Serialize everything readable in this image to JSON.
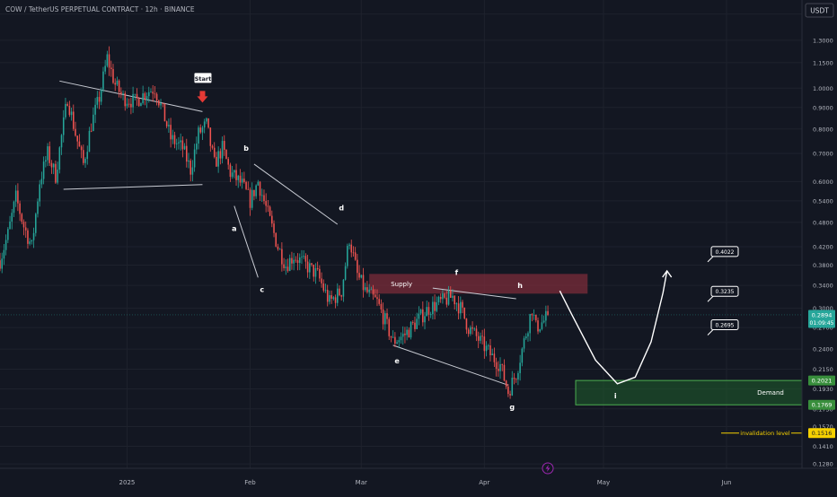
{
  "header": {
    "title": "COW / TetherUS PERPETUAL CONTRACT · 12h · BINANCE"
  },
  "currency_label": "USDT",
  "colors": {
    "background": "#131722",
    "up": "#26a69a",
    "down": "#ef5350",
    "grid": "#1e222d",
    "text": "#b2b5be",
    "supply": "#7b2c3a",
    "demand": "#1f5e2c",
    "demand_border": "#4caf50",
    "invalidation": "#f5d000",
    "arrow": "#e53935",
    "last_price": "#26a69a"
  },
  "chart_data": {
    "type": "candlestick",
    "y_scale": "log",
    "ylim": [
      0.125,
      1.62
    ],
    "y_ticks": [
      "1.5000",
      "1.3000",
      "1.1500",
      "1.0000",
      "0.9000",
      "0.8000",
      "0.7000",
      "0.6000",
      "0.5400",
      "0.4800",
      "0.4200",
      "0.3800",
      "0.3400",
      "0.3000",
      "0.2700",
      "0.2400",
      "0.2150",
      "0.1930",
      "0.1730",
      "0.1570",
      "0.1410",
      "0.1280"
    ],
    "x_ticks": [
      {
        "label": "2025",
        "date": "2025-01-01"
      },
      {
        "label": "Feb",
        "date": "2025-02-01"
      },
      {
        "label": "Mar",
        "date": "2025-03-01"
      },
      {
        "label": "Apr",
        "date": "2025-04-01"
      },
      {
        "label": "May",
        "date": "2025-05-01"
      },
      {
        "label": "Jun",
        "date": "2025-06-01"
      }
    ],
    "xlim": [
      "2024-11-30",
      "2025-06-20"
    ],
    "price_anchors": [
      {
        "date": "2024-11-30",
        "price": 0.39
      },
      {
        "date": "2024-12-02",
        "price": 0.45
      },
      {
        "date": "2024-12-04",
        "price": 0.55
      },
      {
        "date": "2024-12-06",
        "price": 0.47
      },
      {
        "date": "2024-12-08",
        "price": 0.42
      },
      {
        "date": "2024-12-10",
        "price": 0.6
      },
      {
        "date": "2024-12-12",
        "price": 0.7
      },
      {
        "date": "2024-12-14",
        "price": 0.62
      },
      {
        "date": "2024-12-17",
        "price": 0.95
      },
      {
        "date": "2024-12-19",
        "price": 0.78
      },
      {
        "date": "2024-12-21",
        "price": 0.66
      },
      {
        "date": "2024-12-23",
        "price": 0.82
      },
      {
        "date": "2024-12-25",
        "price": 0.95
      },
      {
        "date": "2024-12-27",
        "price": 1.18
      },
      {
        "date": "2024-12-29",
        "price": 1.02
      },
      {
        "date": "2024-12-31",
        "price": 0.95
      },
      {
        "date": "2025-01-03",
        "price": 0.93
      },
      {
        "date": "2025-01-06",
        "price": 0.98
      },
      {
        "date": "2025-01-08",
        "price": 1.0
      },
      {
        "date": "2025-01-10",
        "price": 0.88
      },
      {
        "date": "2025-01-12",
        "price": 0.76
      },
      {
        "date": "2025-01-15",
        "price": 0.72
      },
      {
        "date": "2025-01-17",
        "price": 0.64
      },
      {
        "date": "2025-01-19",
        "price": 0.78
      },
      {
        "date": "2025-01-21",
        "price": 0.82
      },
      {
        "date": "2025-01-23",
        "price": 0.66
      },
      {
        "date": "2025-01-25",
        "price": 0.72
      },
      {
        "date": "2025-01-27",
        "price": 0.63
      },
      {
        "date": "2025-01-30",
        "price": 0.59
      },
      {
        "date": "2025-02-01",
        "price": 0.54
      },
      {
        "date": "2025-02-03",
        "price": 0.6
      },
      {
        "date": "2025-02-05",
        "price": 0.52
      },
      {
        "date": "2025-02-08",
        "price": 0.42
      },
      {
        "date": "2025-02-10",
        "price": 0.38
      },
      {
        "date": "2025-02-12",
        "price": 0.4
      },
      {
        "date": "2025-02-15",
        "price": 0.38
      },
      {
        "date": "2025-02-18",
        "price": 0.36
      },
      {
        "date": "2025-02-21",
        "price": 0.31
      },
      {
        "date": "2025-02-24",
        "price": 0.33
      },
      {
        "date": "2025-02-26",
        "price": 0.44
      },
      {
        "date": "2025-02-28",
        "price": 0.36
      },
      {
        "date": "2025-03-02",
        "price": 0.33
      },
      {
        "date": "2025-03-05",
        "price": 0.31
      },
      {
        "date": "2025-03-07",
        "price": 0.28
      },
      {
        "date": "2025-03-09",
        "price": 0.25
      },
      {
        "date": "2025-03-12",
        "price": 0.26
      },
      {
        "date": "2025-03-15",
        "price": 0.28
      },
      {
        "date": "2025-03-18",
        "price": 0.3
      },
      {
        "date": "2025-03-21",
        "price": 0.31
      },
      {
        "date": "2025-03-24",
        "price": 0.32
      },
      {
        "date": "2025-03-26",
        "price": 0.3
      },
      {
        "date": "2025-03-28",
        "price": 0.27
      },
      {
        "date": "2025-03-31",
        "price": 0.25
      },
      {
        "date": "2025-04-03",
        "price": 0.23
      },
      {
        "date": "2025-04-05",
        "price": 0.22
      },
      {
        "date": "2025-04-07",
        "price": 0.19
      },
      {
        "date": "2025-04-09",
        "price": 0.21
      },
      {
        "date": "2025-04-11",
        "price": 0.25
      },
      {
        "date": "2025-04-13",
        "price": 0.3
      },
      {
        "date": "2025-04-14",
        "price": 0.27
      },
      {
        "date": "2025-04-16",
        "price": 0.28
      },
      {
        "date": "2025-04-17",
        "price": 0.2894
      }
    ],
    "wave_points": [
      {
        "label": "Start",
        "date": "2025-01-20",
        "price": 1.05,
        "style": "box"
      },
      {
        "label": "a",
        "date": "2025-01-28",
        "price": 0.465
      },
      {
        "label": "b",
        "date": "2025-01-31",
        "price": 0.72
      },
      {
        "label": "c",
        "date": "2025-02-04",
        "price": 0.333
      },
      {
        "label": "d",
        "date": "2025-02-24",
        "price": 0.52
      },
      {
        "label": "e",
        "date": "2025-03-10",
        "price": 0.225
      },
      {
        "label": "f",
        "date": "2025-03-25",
        "price": 0.365
      },
      {
        "label": "g",
        "date": "2025-04-08",
        "price": 0.175
      },
      {
        "label": "h",
        "date": "2025-04-10",
        "price": 0.34
      },
      {
        "label": "i",
        "date": "2025-05-04",
        "price": 0.186
      }
    ],
    "trendlines": [
      {
        "from": {
          "date": "2024-12-15",
          "price": 1.04
        },
        "to": {
          "date": "2025-01-20",
          "price": 0.88
        }
      },
      {
        "from": {
          "date": "2024-12-16",
          "price": 0.575
        },
        "to": {
          "date": "2025-01-20",
          "price": 0.59
        }
      },
      {
        "from": {
          "date": "2025-02-02",
          "price": 0.66
        },
        "to": {
          "date": "2025-02-23",
          "price": 0.475
        }
      },
      {
        "from": {
          "date": "2025-01-28",
          "price": 0.525
        },
        "to": {
          "date": "2025-02-03",
          "price": 0.355
        }
      },
      {
        "from": {
          "date": "2025-03-09",
          "price": 0.245
        },
        "to": {
          "date": "2025-04-07",
          "price": 0.197
        }
      },
      {
        "from": {
          "date": "2025-03-19",
          "price": 0.335
        },
        "to": {
          "date": "2025-04-09",
          "price": 0.316
        }
      }
    ],
    "zones": [
      {
        "name": "Supply",
        "from": "2025-03-03",
        "to": "2025-04-27",
        "top": 0.362,
        "bottom": 0.325
      },
      {
        "name": "Demand",
        "from": "2025-04-24",
        "to": "2025-06-20",
        "top": 0.2021,
        "bottom": 0.1769
      }
    ],
    "projection": [
      {
        "date": "2025-04-20",
        "price": 0.33
      },
      {
        "date": "2025-04-26",
        "price": 0.255
      },
      {
        "date": "2025-05-02",
        "price": 0.2
      },
      {
        "date": "2025-05-07",
        "price": 0.197
      },
      {
        "date": "2025-05-11",
        "price": 0.215
      },
      {
        "date": "2025-05-15",
        "price": 0.29
      },
      {
        "date": "2025-05-17",
        "price": 0.368
      }
    ],
    "targets": [
      {
        "label": "0.4022",
        "price": 0.4022
      },
      {
        "label": "0.3235",
        "price": 0.3235
      },
      {
        "label": "0.2695",
        "price": 0.2695
      }
    ],
    "invalidation": {
      "label": "invalidation level",
      "price": 0.1516
    },
    "price_badges": [
      {
        "label": "0.2894",
        "sub": "01:09:45",
        "price": 0.2894,
        "kind": "last"
      },
      {
        "label": "0.2021",
        "price": 0.2021,
        "kind": "zone"
      },
      {
        "label": "0.1769",
        "price": 0.1769,
        "kind": "zone"
      },
      {
        "label": "0.1516",
        "price": 0.1516,
        "kind": "invalidation"
      }
    ]
  }
}
